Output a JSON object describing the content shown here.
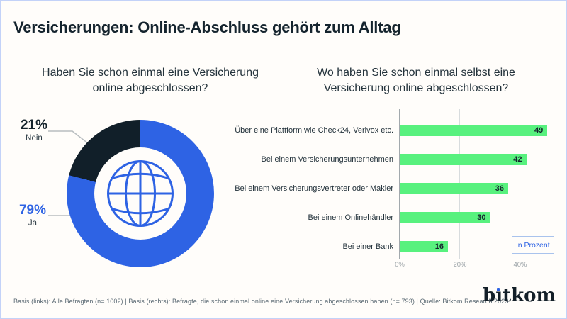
{
  "title": "Versicherungen: Online-Abschluss gehört zum Alltag",
  "footer": "Basis (links): Alle Befragten (n= 1002) | Basis (rechts): Befragte, die schon einmal online eine Versicherung abgeschlossen haben (n= 793) | Quelle: Bitkom Research 2023",
  "logo": {
    "pre": "b",
    "i": "ı",
    "post": "tkom"
  },
  "donut": {
    "question": "Haben Sie schon einmal eine Versicherung online abgeschlossen?",
    "callouts": [
      {
        "value": "21%",
        "label": "Nein"
      },
      {
        "value": "79%",
        "label": "Ja"
      }
    ]
  },
  "bars": {
    "question": "Wo haben Sie schon einmal selbst eine Versicherung online abgeschlossen?",
    "unit_label": "in Prozent"
  },
  "colors": {
    "blue": "#2e63e4",
    "dark": "#111f29",
    "green": "#58f17e",
    "leader_gray": "#b8bdc0"
  },
  "chart_data": [
    {
      "type": "pie",
      "subtype": "donut",
      "title": "Haben Sie schon einmal eine Versicherung online abgeschlossen?",
      "labels": [
        "Ja",
        "Nein"
      ],
      "values": [
        79,
        21
      ],
      "colors": [
        "#2e63e4",
        "#111f29"
      ],
      "unit": "%",
      "center_icon": "globe",
      "legend_position": "left-callouts"
    },
    {
      "type": "bar",
      "orientation": "horizontal",
      "title": "Wo haben Sie schon einmal selbst eine Versicherung online abgeschlossen?",
      "categories": [
        "Über eine Plattform wie Check24, Verivox etc.",
        "Bei einem Versicherungsunternehmen",
        "Bei einem Versicherungsvertreter oder Makler",
        "Bei einem Onlinehändler",
        "Bei einer Bank"
      ],
      "values": [
        49,
        42,
        36,
        30,
        16
      ],
      "xlim": [
        0,
        53
      ],
      "xticks": [
        {
          "label": "0%",
          "value": 0
        },
        {
          "label": "20%",
          "value": 20
        },
        {
          "label": "40%",
          "value": 40
        }
      ],
      "bar_color": "#58f17e",
      "unit_label": "in Prozent",
      "grid": true,
      "value_labels": "inside-right"
    }
  ]
}
